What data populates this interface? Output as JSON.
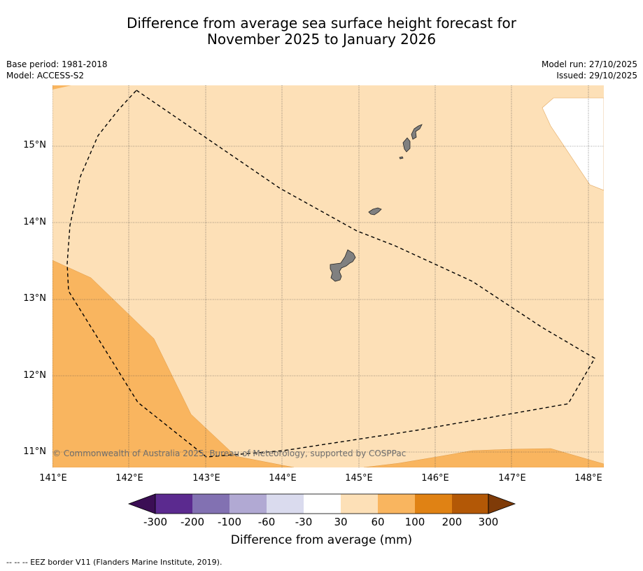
{
  "title": {
    "line1": "Difference from average sea surface height forecast for",
    "line2": "November 2025 to January 2026"
  },
  "meta": {
    "base_period": "Base period: 1981-2018",
    "model": "Model: ACCESS-S2",
    "model_run": "Model run: 27/10/2025",
    "issued": "Issued: 29/10/2025"
  },
  "map": {
    "lat_labels": [
      "15°N",
      "14°N",
      "13°N",
      "12°N",
      "11°N"
    ],
    "lon_labels": [
      "141°E",
      "142°E",
      "143°E",
      "144°E",
      "145°E",
      "146°E",
      "147°E",
      "148°E"
    ],
    "extent": {
      "lon_min": 141.0,
      "lon_max": 148.2,
      "lat_min": 10.8,
      "lat_max": 15.8
    },
    "copyright": "© Commonwealth of Australia 2025, Bureau of Meteorology, supported by COSPPac",
    "colors": {
      "band_30_60": "#fde0b7",
      "band_60_100": "#f9b55f",
      "band_neg30_30": "#ffffff",
      "land": "#808080"
    }
  },
  "colorbar": {
    "ticks": [
      "-300",
      "-200",
      "-100",
      "-60",
      "-30",
      "30",
      "60",
      "100",
      "200",
      "300"
    ],
    "colors": [
      "#3b0e55",
      "#5b2a8f",
      "#8271b2",
      "#b1a9d3",
      "#dadbee",
      "#ffffff",
      "#fde0b7",
      "#f9b55f",
      "#e08214",
      "#b35806",
      "#7f3b08"
    ],
    "label": "Difference from average (mm)"
  },
  "footer": "--  --  -- EEZ border V11 (Flanders Marine Institute, 2019)."
}
